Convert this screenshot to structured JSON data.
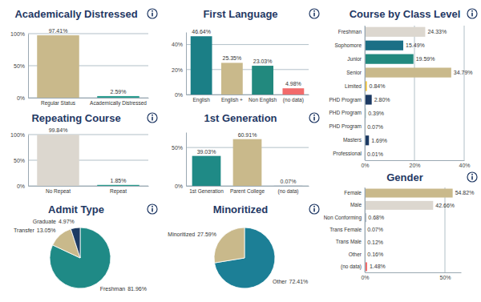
{
  "chart_data": [
    {
      "type": "bar",
      "title": "Academically Distressed",
      "categories": [
        "Regular Status",
        "Academically Distressed"
      ],
      "values": [
        97.41,
        2.59
      ],
      "value_labels": [
        "97.41%",
        "2.59%"
      ],
      "colors": [
        "#c9b98b",
        "#2a9d8f"
      ],
      "ylim": [
        0,
        100
      ],
      "yticks": [
        {
          "value": 0,
          "label": "0%"
        },
        {
          "value": 50,
          "label": "50%"
        },
        {
          "value": 100,
          "label": "100%"
        }
      ],
      "grid": true,
      "data_labels": true
    },
    {
      "type": "bar",
      "title": "First Language",
      "categories": [
        "English",
        "English +",
        "Non English",
        "(no data)"
      ],
      "values": [
        46.64,
        25.35,
        23.03,
        4.98
      ],
      "value_labels": [
        "46.64%",
        "25.35%",
        "23.03%",
        "4.98%"
      ],
      "colors": [
        "#1b7f86",
        "#c9b98b",
        "#22897e",
        "#f26b6b"
      ],
      "ylim": [
        0,
        50
      ],
      "yticks": [
        {
          "value": 0,
          "label": "0%"
        },
        {
          "value": 20,
          "label": "20%"
        },
        {
          "value": 40,
          "label": "40%"
        }
      ],
      "grid": true,
      "data_labels": true
    },
    {
      "type": "bar",
      "orientation": "horizontal",
      "title": "Course by Class Level",
      "categories": [
        "Freshman",
        "Sophomore",
        "Junior",
        "Senior",
        "Limited",
        "PHD Program",
        "PHD Program",
        "PHD Program",
        "Masters",
        "Professional"
      ],
      "values": [
        24.33,
        15.49,
        19.59,
        34.79,
        0.84,
        2.8,
        0.39,
        0.07,
        1.69,
        0.01
      ],
      "value_labels": [
        "24.33%",
        "15.49%",
        "19.59%",
        "34.79%",
        "0.84%",
        "2.80%",
        "0.39%",
        "0.07%",
        "1.69%",
        "0.01%"
      ],
      "colors": [
        "#dcd7cf",
        "#1b6f86",
        "#22897e",
        "#c9b98b",
        "#f2c12e",
        "#1c3a63",
        "#1f8a86",
        "#1f8a86",
        "#1c3a63",
        "#1f8a86"
      ],
      "xlim": [
        0,
        40
      ],
      "xticks": [
        {
          "value": 0,
          "label": "0%"
        },
        {
          "value": 20,
          "label": "20%"
        },
        {
          "value": 40,
          "label": "40%"
        }
      ],
      "grid": true,
      "data_labels": true
    },
    {
      "type": "bar",
      "title": "Repeating Course",
      "categories": [
        "No Repeat",
        "Repeat"
      ],
      "values": [
        99.84,
        1.85
      ],
      "value_labels": [
        "99.84%",
        "1.85%"
      ],
      "colors": [
        "#dcd7cf",
        "#2a9d8f"
      ],
      "ylim": [
        0,
        100
      ],
      "yticks": [
        {
          "value": 0,
          "label": "0%"
        },
        {
          "value": 50,
          "label": "50%"
        },
        {
          "value": 100,
          "label": "100%"
        }
      ],
      "grid": true,
      "data_labels": true
    },
    {
      "type": "bar",
      "title": "1st Generation",
      "categories": [
        "1st Generation",
        "Parent College",
        "(no data)"
      ],
      "values": [
        39.03,
        60.91,
        0.07
      ],
      "value_labels": [
        "39.03%",
        "60.91%",
        "0.07%"
      ],
      "colors": [
        "#1f8a86",
        "#c9b98b",
        "#1c3a63"
      ],
      "ylim": [
        0,
        70
      ],
      "yticks": [
        {
          "value": 0,
          "label": "0%"
        },
        {
          "value": 50,
          "label": "50%"
        }
      ],
      "grid": true,
      "data_labels": true
    },
    {
      "type": "pie",
      "title": "Admit Type",
      "categories": [
        "Freshman",
        "Transfer",
        "Graduate"
      ],
      "values": [
        81.96,
        13.05,
        4.97
      ],
      "value_labels": [
        "81.96%",
        "13.05%",
        "4.97%"
      ],
      "colors": [
        "#1f8a86",
        "#c9b98b",
        "#1c3a63"
      ],
      "data_labels": true
    },
    {
      "type": "pie",
      "title": "Minoritized",
      "categories": [
        "Other",
        "Minoritized"
      ],
      "values": [
        72.41,
        27.59
      ],
      "value_labels": [
        "72.41%",
        "27.59%"
      ],
      "colors": [
        "#1c7f96",
        "#c9b98b"
      ],
      "data_labels": true
    },
    {
      "type": "bar",
      "orientation": "horizontal",
      "title": "Gender",
      "categories": [
        "Female",
        "Male",
        "Non Conforming",
        "Trans Female",
        "Trans Male",
        "Other",
        "(no data)"
      ],
      "values": [
        54.82,
        42.66,
        0.68,
        0.07,
        0.12,
        0.16,
        1.48
      ],
      "value_labels": [
        "54.82%",
        "42.66%",
        "0.68%",
        "0.07%",
        "0.12%",
        "0.16%",
        "1.48%"
      ],
      "colors": [
        "#c9b98b",
        "#dcd7cf",
        "#1c3a63",
        "#1f8a86",
        "#1c3a63",
        "#1c3a63",
        "#f26b6b"
      ],
      "xlim": [
        0,
        60
      ],
      "xticks": [
        {
          "value": 0,
          "label": "0%"
        },
        {
          "value": 50,
          "label": "50%"
        }
      ],
      "grid": true,
      "data_labels": true
    }
  ]
}
